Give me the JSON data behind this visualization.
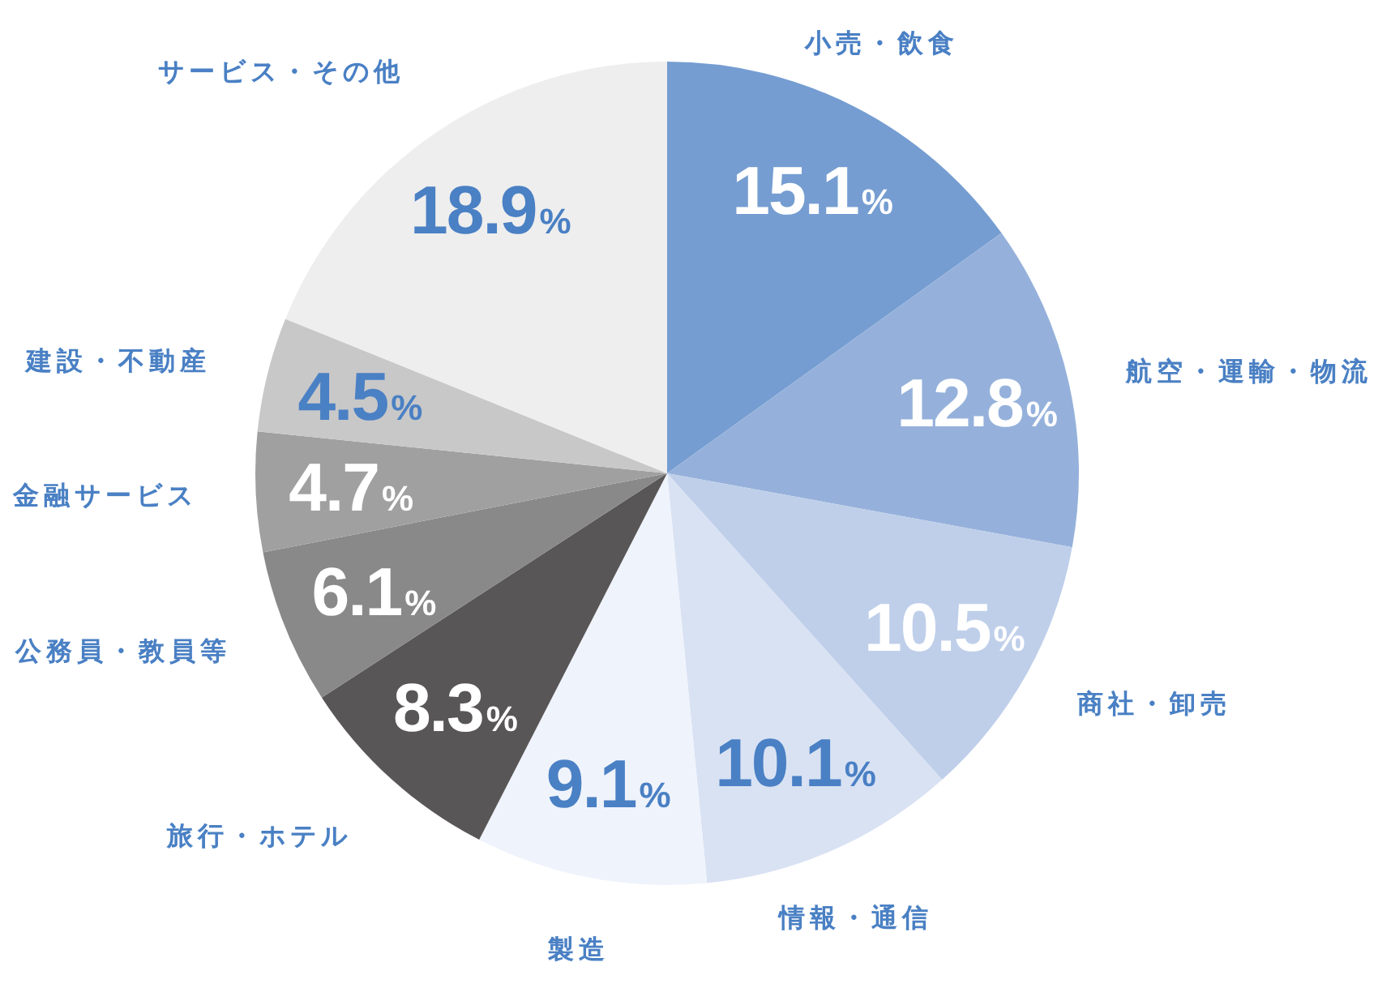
{
  "chart_data": {
    "type": "pie",
    "categories": [
      "小売・飲食",
      "航空・運輸・物流",
      "商社・卸売",
      "情報・通信",
      "製造",
      "旅行・ホテル",
      "公務員・教員等",
      "金融サービス",
      "建設・不動産",
      "サービス・その他"
    ],
    "values": [
      15.1,
      12.8,
      10.5,
      10.1,
      9.1,
      8.3,
      6.1,
      4.7,
      4.5,
      18.9
    ],
    "colors": [
      "#759dd1",
      "#95b1db",
      "#bfcfea",
      "#d9e2f3",
      "#eff3fb",
      "#595657",
      "#898989",
      "#a0a0a0",
      "#c8c8c9",
      "#eeeeee"
    ],
    "value_labels": [
      "15.1%",
      "12.8%",
      "10.5%",
      "10.1%",
      "9.1%",
      "8.3%",
      "6.1%",
      "4.7%",
      "4.5%",
      "18.9%"
    ]
  }
}
